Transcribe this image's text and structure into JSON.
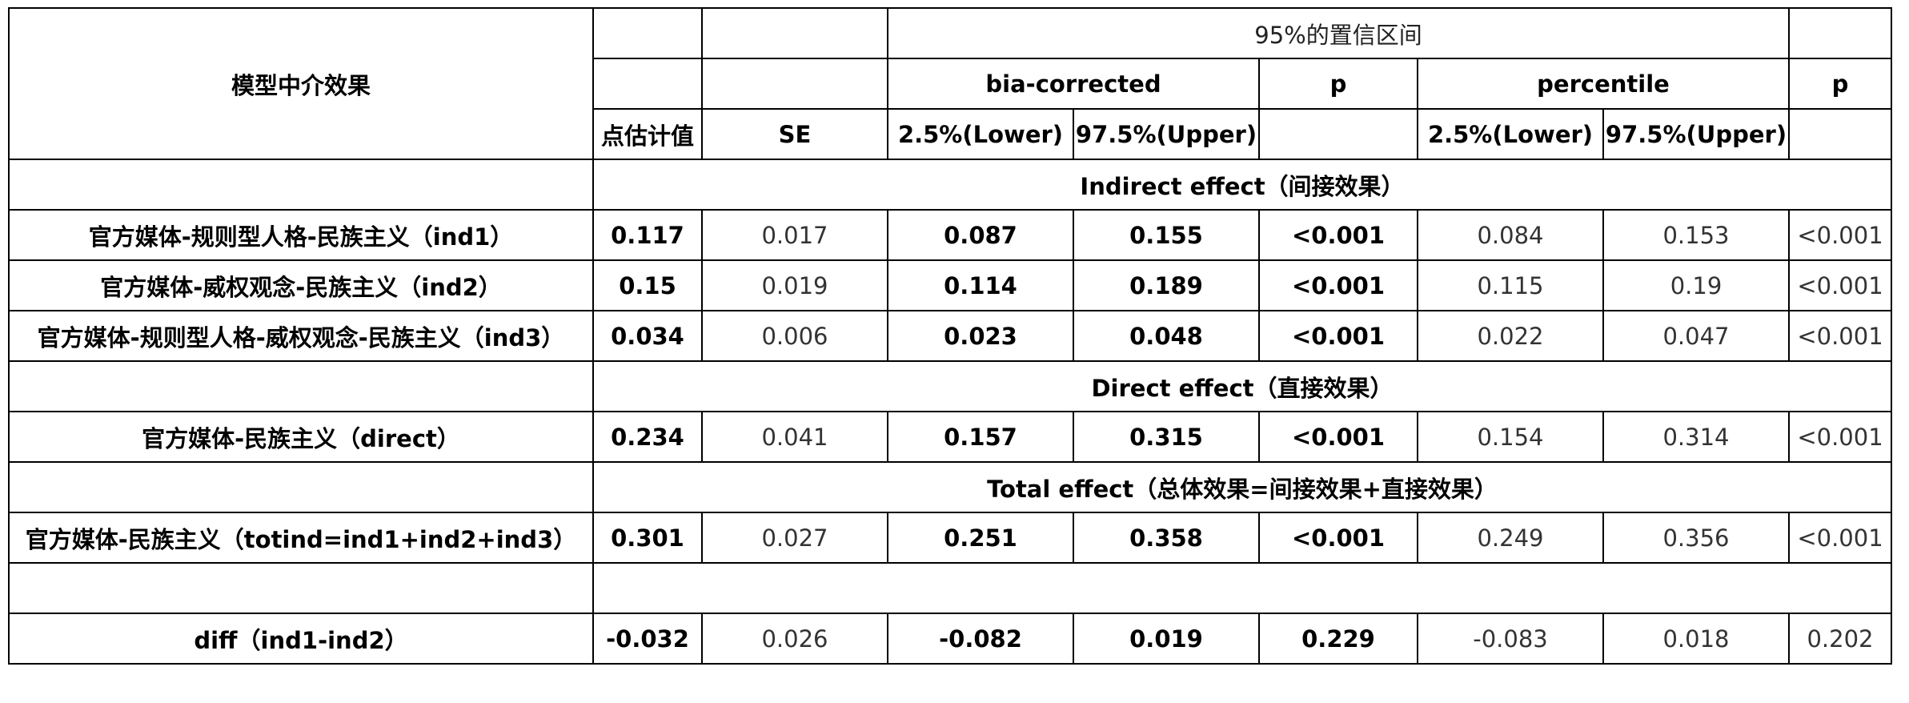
{
  "header": {
    "model_label": "模型中介效果",
    "ci_label": "95%的置信区间",
    "bia_corrected": "bia-corrected",
    "percentile": "percentile",
    "p1": "p",
    "p2": "p",
    "point_estimate": "点估计值",
    "se": "SE",
    "bc_lower": "2.5%(Lower)",
    "bc_upper": "97.5%(Upper)",
    "pc_lower": "2.5%(Lower)",
    "pc_upper": "97.5%(Upper)"
  },
  "sections": {
    "indirect": "Indirect effect（间接效果）",
    "direct": "Direct effect（直接效果）",
    "total": "Total effect（总体效果=间接效果+直接效果）"
  },
  "rows": {
    "ind1": {
      "label": "官方媒体-规则型人格-民族主义（ind1）",
      "est": "0.117",
      "se": "0.017",
      "bc_lower": "0.087",
      "bc_upper": "0.155",
      "bc_p": "<0.001",
      "pc_lower": "0.084",
      "pc_upper": "0.153",
      "pc_p": "<0.001"
    },
    "ind2": {
      "label": "官方媒体-威权观念-民族主义（ind2）",
      "est": "0.15",
      "se": "0.019",
      "bc_lower": "0.114",
      "bc_upper": "0.189",
      "bc_p": "<0.001",
      "pc_lower": "0.115",
      "pc_upper": "0.19",
      "pc_p": "<0.001"
    },
    "ind3": {
      "label": "官方媒体-规则型人格-威权观念-民族主义（ind3）",
      "est": "0.034",
      "se": "0.006",
      "bc_lower": "0.023",
      "bc_upper": "0.048",
      "bc_p": "<0.001",
      "pc_lower": "0.022",
      "pc_upper": "0.047",
      "pc_p": "<0.001"
    },
    "direct": {
      "label": "官方媒体-民族主义（direct）",
      "est": "0.234",
      "se": "0.041",
      "bc_lower": "0.157",
      "bc_upper": "0.315",
      "bc_p": "<0.001",
      "pc_lower": "0.154",
      "pc_upper": "0.314",
      "pc_p": "<0.001"
    },
    "total": {
      "label": "官方媒体-民族主义（totind=ind1+ind2+ind3）",
      "est": "0.301",
      "se": "0.027",
      "bc_lower": "0.251",
      "bc_upper": "0.358",
      "bc_p": "<0.001",
      "pc_lower": "0.249",
      "pc_upper": "0.356",
      "pc_p": "<0.001"
    },
    "diff": {
      "label": "diff（ind1-ind2）",
      "est": "-0.032",
      "se": "0.026",
      "bc_lower": "-0.082",
      "bc_upper": "0.019",
      "bc_p": "0.229",
      "pc_lower": "-0.083",
      "pc_upper": "0.018",
      "pc_p": "0.202"
    }
  }
}
